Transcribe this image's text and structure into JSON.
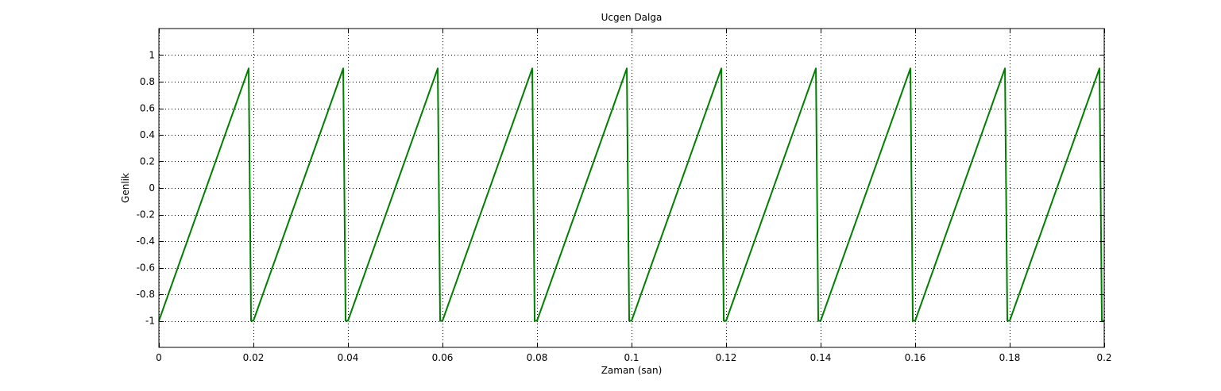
{
  "colors": {
    "background": "#ffffff",
    "axes_frame": "#000000",
    "grid": "#000000",
    "series": "#007f00"
  },
  "chart_data": {
    "type": "line",
    "title": "Ucgen Dalga",
    "xlabel": "Zaman (san)",
    "ylabel": "Genlik",
    "xlim": [
      0,
      0.2
    ],
    "ylim": [
      -1.2,
      1.2
    ],
    "xticks": [
      0,
      0.02,
      0.04,
      0.06,
      0.08,
      0.1,
      0.12,
      0.14,
      0.16,
      0.18,
      0.2
    ],
    "xtick_labels": [
      "0",
      "0.02",
      "0.04",
      "0.06",
      "0.08",
      "0.1",
      "0.12",
      "0.14",
      "0.16",
      "0.18",
      "0.2"
    ],
    "yticks": [
      -1,
      -0.8,
      -0.6,
      -0.4,
      -0.2,
      0,
      0.2,
      0.4,
      0.6,
      0.8,
      1
    ],
    "ytick_labels": [
      "-1",
      "-0.8",
      "-0.6",
      "-0.4",
      "-0.2",
      "0",
      "0.2",
      "0.4",
      "0.6",
      "0.8",
      "1"
    ],
    "grid": true,
    "grid_style": "dotted",
    "series": [
      {
        "x": [
          0,
          0.019,
          0.0195,
          0.02,
          0.039,
          0.0395,
          0.04,
          0.059,
          0.0595,
          0.06,
          0.079,
          0.0795,
          0.08,
          0.099,
          0.0995,
          0.1,
          0.119,
          0.1195,
          0.12,
          0.139,
          0.1395,
          0.14,
          0.159,
          0.1595,
          0.16,
          0.179,
          0.1795,
          0.18,
          0.199,
          0.1995,
          0.2
        ],
        "y": [
          -1,
          0.9,
          -1,
          -1,
          0.9,
          -1,
          -1,
          0.9,
          -1,
          -1,
          0.9,
          -1,
          -1,
          0.9,
          -1,
          -1,
          0.9,
          -1,
          -1,
          0.9,
          -1,
          -1,
          0.9,
          -1,
          -1,
          0.9,
          -1,
          -1,
          0.9,
          -1,
          -1
        ]
      }
    ]
  }
}
